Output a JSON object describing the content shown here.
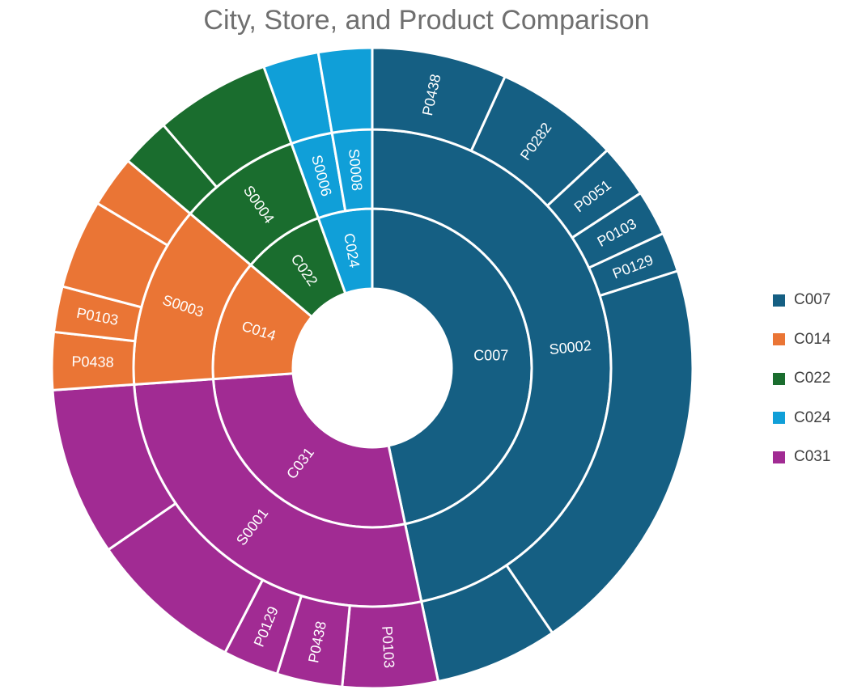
{
  "chart_data": {
    "type": "sunburst",
    "title": "City, Store, and Product Comparison",
    "colors": {
      "C007": "#155f83",
      "C014": "#ea7535",
      "C022": "#1a6d2e",
      "C024": "#109fd8",
      "C031": "#a12b93"
    },
    "legend": {
      "position": "right",
      "entries": [
        "C007",
        "C014",
        "C022",
        "C024",
        "C031"
      ]
    },
    "rings": {
      "city": [
        {
          "label": "C007",
          "value": 46.7
        },
        {
          "label": "C031",
          "value": 27.2
        },
        {
          "label": "C014",
          "value": 12.3
        },
        {
          "label": "C022",
          "value": 8.3
        },
        {
          "label": "C024",
          "value": 5.5
        }
      ],
      "store": [
        {
          "label": "S0002",
          "city": "C007",
          "value": 46.7
        },
        {
          "label": "S0001",
          "city": "C031",
          "value": 27.2
        },
        {
          "label": "S0003",
          "city": "C014",
          "value": 12.3
        },
        {
          "label": "S0004",
          "city": "C022",
          "value": 8.3
        },
        {
          "label": "S0006",
          "city": "C024",
          "value": 2.8
        },
        {
          "label": "S0008",
          "city": "C024",
          "value": 2.7
        }
      ],
      "product": [
        {
          "label": "P0438",
          "city": "C007",
          "value": 6.8
        },
        {
          "label": "P0282",
          "city": "C007",
          "value": 6.3
        },
        {
          "label": "P0051",
          "city": "C007",
          "value": 2.7
        },
        {
          "label": "P0103",
          "city": "C007",
          "value": 2.3
        },
        {
          "label": "P0129",
          "city": "C007",
          "value": 2.0
        },
        {
          "label": "",
          "city": "C007",
          "value": 20.4
        },
        {
          "label": "",
          "city": "C007",
          "value": 6.2
        },
        {
          "label": "P0103",
          "city": "C031",
          "value": 4.8
        },
        {
          "label": "P0438",
          "city": "C031",
          "value": 3.3
        },
        {
          "label": "P0129",
          "city": "C031",
          "value": 2.8
        },
        {
          "label": "",
          "city": "C031",
          "value": 7.8
        },
        {
          "label": "",
          "city": "C031",
          "value": 8.5
        },
        {
          "label": "P0438",
          "city": "C014",
          "value": 2.9
        },
        {
          "label": "P0103",
          "city": "C014",
          "value": 2.3
        },
        {
          "label": "",
          "city": "C014",
          "value": 4.5
        },
        {
          "label": "",
          "city": "C014",
          "value": 2.6
        },
        {
          "label": "",
          "city": "C022",
          "value": 2.5
        },
        {
          "label": "",
          "city": "C022",
          "value": 5.8
        },
        {
          "label": "",
          "city": "C024",
          "value": 2.8
        },
        {
          "label": "",
          "city": "C024",
          "value": 2.7
        }
      ]
    }
  }
}
